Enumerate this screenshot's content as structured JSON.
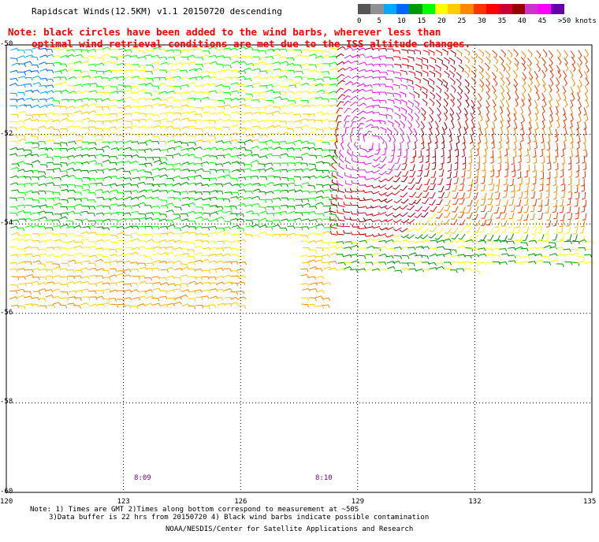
{
  "title": "Rapidscat Winds(12.5KM) v1.1 20150720 descending",
  "note_line1": "Note: black circles have been added to the wind barbs, wherever less than",
  "note_line2": "    optimal wind retrieval conditions are met due to the ISS altitude changes.",
  "colorbar": {
    "labels": [
      "0",
      "5",
      "10",
      "15",
      "20",
      "25",
      "30",
      "35",
      "40",
      "45",
      ">50 knots"
    ],
    "colors": [
      "#555555",
      "#909090",
      "#00aaff",
      "#0066ff",
      "#009900",
      "#00ff00",
      "#ffff00",
      "#ffcc00",
      "#ff8800",
      "#ff3300",
      "#ff0000",
      "#cc0033",
      "#990000",
      "#cc33cc",
      "#ff00ff",
      "#6600aa"
    ]
  },
  "axes": {
    "lat_labels": [
      "-50",
      "-52",
      "-54",
      "-56",
      "-58",
      "-60"
    ],
    "lon_labels": [
      "120",
      "123",
      "126",
      "129",
      "132",
      "135"
    ]
  },
  "time_labels": [
    "8:09",
    "8:10"
  ],
  "footer_note1": "Note: 1) Times are GMT 2)Times along bottom correspond to measurement at ~50S",
  "footer_note2": "3)Data buffer is 22 hrs from 20150720 4) Black wind barbs indicate possible contamination",
  "credit": "NOAA/NESDIS/Center for Satellite Applications and Research",
  "map": {
    "lon_range": [
      120,
      135
    ],
    "lat_range": [
      -60,
      -50
    ],
    "grid": true
  }
}
